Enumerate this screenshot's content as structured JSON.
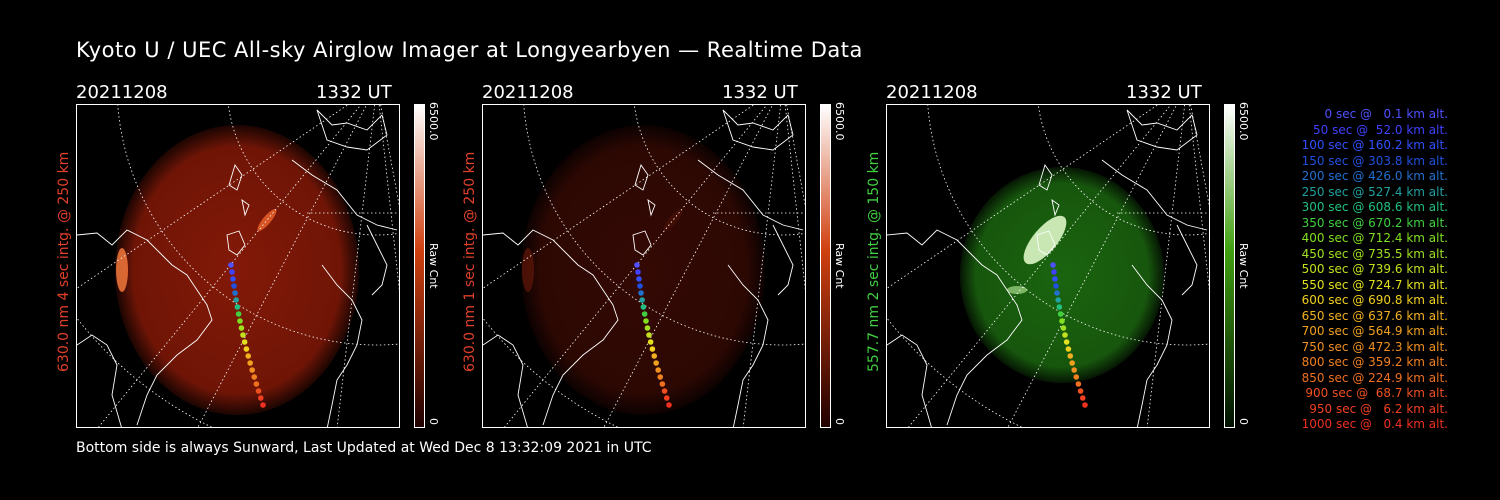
{
  "title": "Kyoto U / UEC All-sky Airglow Imager at Longyearbyen — Realtime Data",
  "panels": [
    {
      "date": "20211208",
      "time": "1332 UT",
      "ylabel": "630.0 nm 4 sec intg. @ 250 km",
      "label_color": "#e0402a",
      "cbar_max": "6500.0",
      "cbar_unit": "Raw Cnt",
      "cbar_min": "0",
      "cbar_top": "#ffffff",
      "cbar_mid": "#d04010",
      "cbar_bottom": "#200000",
      "glow_color": "#8a1a08",
      "glow_opacity": 0.95
    },
    {
      "date": "20211208",
      "time": "1332 UT",
      "ylabel": "630.0 nm 1 sec intg. @ 250 km",
      "label_color": "#e0402a",
      "cbar_max": "6500.0",
      "cbar_unit": "Raw Cnt",
      "cbar_min": "0",
      "cbar_top": "#ffffff",
      "cbar_mid": "#d04010",
      "cbar_bottom": "#200000",
      "glow_color": "#3a0a04",
      "glow_opacity": 0.9
    },
    {
      "date": "20211208",
      "time": "1332 UT",
      "ylabel": "557.7 nm 2 sec intg. @ 150 km",
      "label_color": "#40d040",
      "cbar_max": "6500.0",
      "cbar_unit": "Raw Cnt",
      "cbar_min": "0",
      "cbar_top": "#ffffff",
      "cbar_mid": "#40a010",
      "cbar_bottom": "#001000",
      "glow_color": "#1c6a10",
      "glow_opacity": 0.95
    }
  ],
  "footer": "Bottom side is always Sunward, Last Updated at Wed Dec  8 13:32:09 2021 in UTC",
  "legend": [
    {
      "text": "0 sec @   0.1 km alt.",
      "color": "#5050ff"
    },
    {
      "text": "50 sec @  52.0 km alt.",
      "color": "#4040ff"
    },
    {
      "text": "100 sec @ 160.2 km alt.",
      "color": "#3050ff"
    },
    {
      "text": "150 sec @ 303.8 km alt.",
      "color": "#2050e0"
    },
    {
      "text": "200 sec @ 426.0 km alt.",
      "color": "#2070d0"
    },
    {
      "text": "250 sec @ 527.4 km alt.",
      "color": "#20a0a0"
    },
    {
      "text": "300 sec @ 608.6 km alt.",
      "color": "#20c080"
    },
    {
      "text": "350 sec @ 670.2 km alt.",
      "color": "#40d040"
    },
    {
      "text": "400 sec @ 712.4 km alt.",
      "color": "#80e020"
    },
    {
      "text": "450 sec @ 735.5 km alt.",
      "color": "#a0e020"
    },
    {
      "text": "500 sec @ 739.6 km alt.",
      "color": "#c0e020"
    },
    {
      "text": "550 sec @ 724.7 km alt.",
      "color": "#e0e020"
    },
    {
      "text": "600 sec @ 690.8 km alt.",
      "color": "#f0d020"
    },
    {
      "text": "650 sec @ 637.6 km alt.",
      "color": "#f0b020"
    },
    {
      "text": "700 sec @ 564.9 km alt.",
      "color": "#f0a020"
    },
    {
      "text": "750 sec @ 472.3 km alt.",
      "color": "#f09020"
    },
    {
      "text": "800 sec @ 359.2 km alt.",
      "color": "#f08020"
    },
    {
      "text": "850 sec @ 224.9 km alt.",
      "color": "#f07020"
    },
    {
      "text": "900 sec @  68.7 km alt.",
      "color": "#f05020"
    },
    {
      "text": "950 sec @   6.2 km alt.",
      "color": "#f04020"
    },
    {
      "text": "1000 sec @   0.4 km alt.",
      "color": "#f03020"
    }
  ]
}
